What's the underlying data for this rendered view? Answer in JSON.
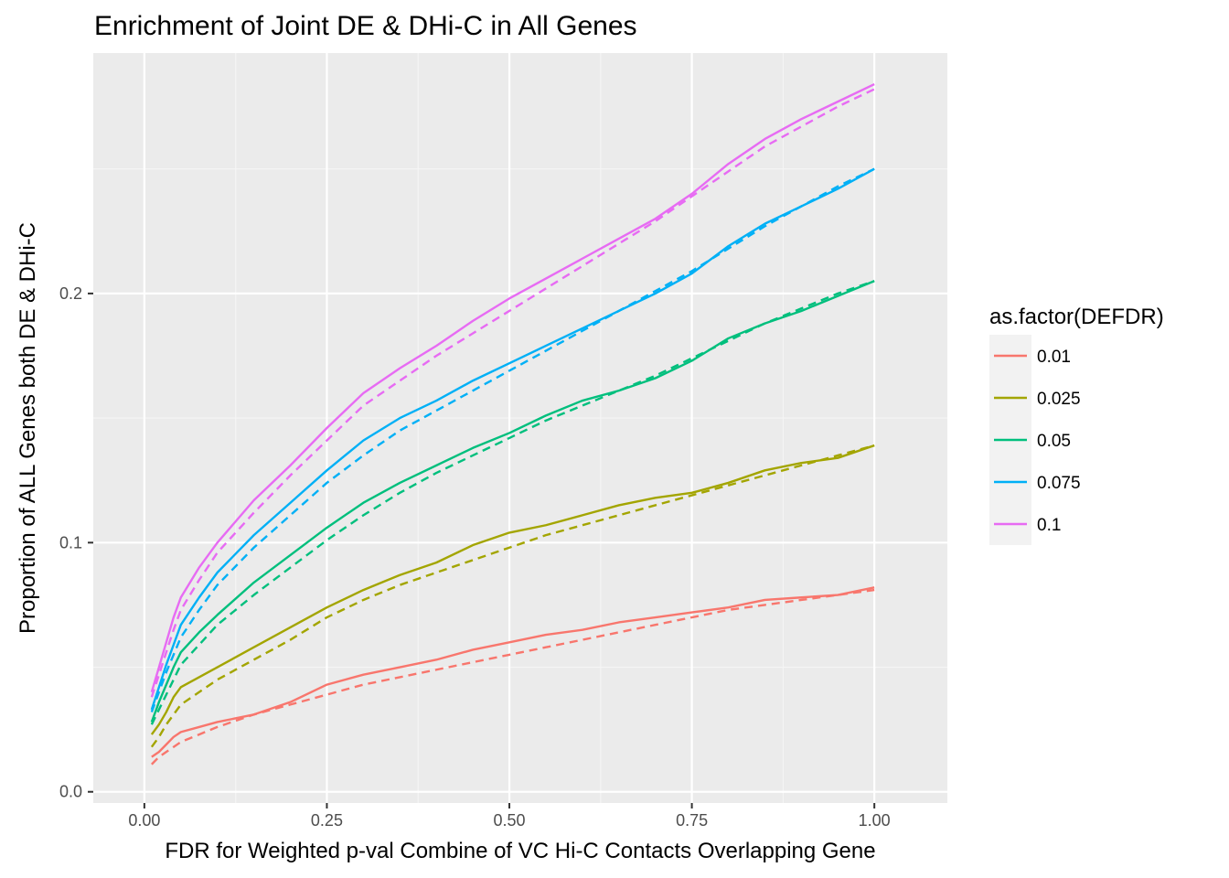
{
  "chart_data": {
    "type": "line",
    "title": "Enrichment of Joint DE & DHi-C in All Genes",
    "xlabel": "FDR for Weighted p-val Combine of VC Hi-C Contacts Overlapping Gene",
    "ylabel": "Proportion of ALL Genes both DE & DHi-C",
    "xlim": [
      -0.07,
      1.1
    ],
    "ylim": [
      0.0,
      0.1
    ],
    "x_ticks": [
      0.0,
      0.25,
      0.5,
      0.75,
      1.0
    ],
    "x_tick_labels": [
      "0.00",
      "0.25",
      "0.50",
      "0.75",
      "1.00"
    ],
    "y_ticks": [
      0.0,
      0.1,
      0.2
    ],
    "y_tick_labels": [
      "0.0",
      "0.1",
      "0.2"
    ],
    "grid": true,
    "legend": {
      "title": "as.factor(DEFDR)",
      "position": "right"
    },
    "x": [
      0.01,
      0.02,
      0.03,
      0.04,
      0.05,
      0.075,
      0.1,
      0.15,
      0.2,
      0.25,
      0.3,
      0.35,
      0.4,
      0.45,
      0.5,
      0.55,
      0.6,
      0.65,
      0.7,
      0.75,
      0.8,
      0.85,
      0.9,
      0.95,
      1.0
    ],
    "series": [
      {
        "name": "0.01",
        "color": "#F8766D",
        "solid": [
          0.014,
          0.016,
          0.019,
          0.022,
          0.024,
          0.026,
          0.028,
          0.031,
          0.036,
          0.043,
          0.047,
          0.05,
          0.053,
          0.057,
          0.06,
          0.063,
          0.065,
          0.068,
          0.07,
          0.072,
          0.074,
          0.077,
          0.078,
          0.079,
          0.082
        ],
        "dashed": [
          0.011,
          0.014,
          0.016,
          0.018,
          0.02,
          0.023,
          0.026,
          0.031,
          0.035,
          0.039,
          0.043,
          0.046,
          0.049,
          0.052,
          0.055,
          0.058,
          0.061,
          0.064,
          0.067,
          0.07,
          0.073,
          0.075,
          0.077,
          0.079,
          0.081
        ]
      },
      {
        "name": "0.025",
        "color": "#A3A500",
        "solid": [
          0.023,
          0.027,
          0.032,
          0.038,
          0.042,
          0.046,
          0.05,
          0.058,
          0.066,
          0.074,
          0.081,
          0.087,
          0.092,
          0.099,
          0.104,
          0.107,
          0.111,
          0.115,
          0.118,
          0.12,
          0.124,
          0.129,
          0.132,
          0.134,
          0.139
        ],
        "dashed": [
          0.018,
          0.022,
          0.027,
          0.031,
          0.035,
          0.04,
          0.045,
          0.053,
          0.061,
          0.07,
          0.077,
          0.083,
          0.088,
          0.093,
          0.098,
          0.103,
          0.107,
          0.111,
          0.115,
          0.119,
          0.123,
          0.127,
          0.131,
          0.135,
          0.139
        ]
      },
      {
        "name": "0.05",
        "color": "#00BF7D",
        "solid": [
          0.028,
          0.036,
          0.043,
          0.05,
          0.056,
          0.064,
          0.071,
          0.084,
          0.095,
          0.106,
          0.116,
          0.124,
          0.131,
          0.138,
          0.144,
          0.151,
          0.157,
          0.161,
          0.166,
          0.173,
          0.182,
          0.188,
          0.193,
          0.199,
          0.205
        ],
        "dashed": [
          0.027,
          0.033,
          0.039,
          0.045,
          0.051,
          0.059,
          0.067,
          0.079,
          0.09,
          0.101,
          0.111,
          0.12,
          0.128,
          0.135,
          0.142,
          0.149,
          0.155,
          0.161,
          0.167,
          0.174,
          0.181,
          0.188,
          0.194,
          0.2,
          0.205
        ]
      },
      {
        "name": "0.075",
        "color": "#00B0F6",
        "solid": [
          0.033,
          0.042,
          0.051,
          0.059,
          0.067,
          0.078,
          0.088,
          0.103,
          0.116,
          0.129,
          0.141,
          0.15,
          0.157,
          0.165,
          0.172,
          0.179,
          0.186,
          0.193,
          0.2,
          0.208,
          0.219,
          0.228,
          0.235,
          0.242,
          0.25
        ],
        "dashed": [
          0.032,
          0.04,
          0.048,
          0.055,
          0.062,
          0.073,
          0.083,
          0.098,
          0.111,
          0.124,
          0.135,
          0.145,
          0.153,
          0.161,
          0.169,
          0.177,
          0.185,
          0.193,
          0.201,
          0.209,
          0.218,
          0.227,
          0.235,
          0.243,
          0.25
        ]
      },
      {
        "name": "0.1",
        "color": "#E76BF3",
        "solid": [
          0.04,
          0.05,
          0.06,
          0.07,
          0.078,
          0.09,
          0.1,
          0.117,
          0.131,
          0.146,
          0.16,
          0.17,
          0.179,
          0.189,
          0.198,
          0.206,
          0.214,
          0.222,
          0.23,
          0.24,
          0.252,
          0.262,
          0.27,
          0.277,
          0.284
        ],
        "dashed": [
          0.038,
          0.047,
          0.056,
          0.065,
          0.073,
          0.085,
          0.096,
          0.112,
          0.127,
          0.141,
          0.155,
          0.165,
          0.175,
          0.184,
          0.193,
          0.202,
          0.211,
          0.22,
          0.229,
          0.239,
          0.249,
          0.259,
          0.267,
          0.275,
          0.282
        ]
      }
    ]
  }
}
